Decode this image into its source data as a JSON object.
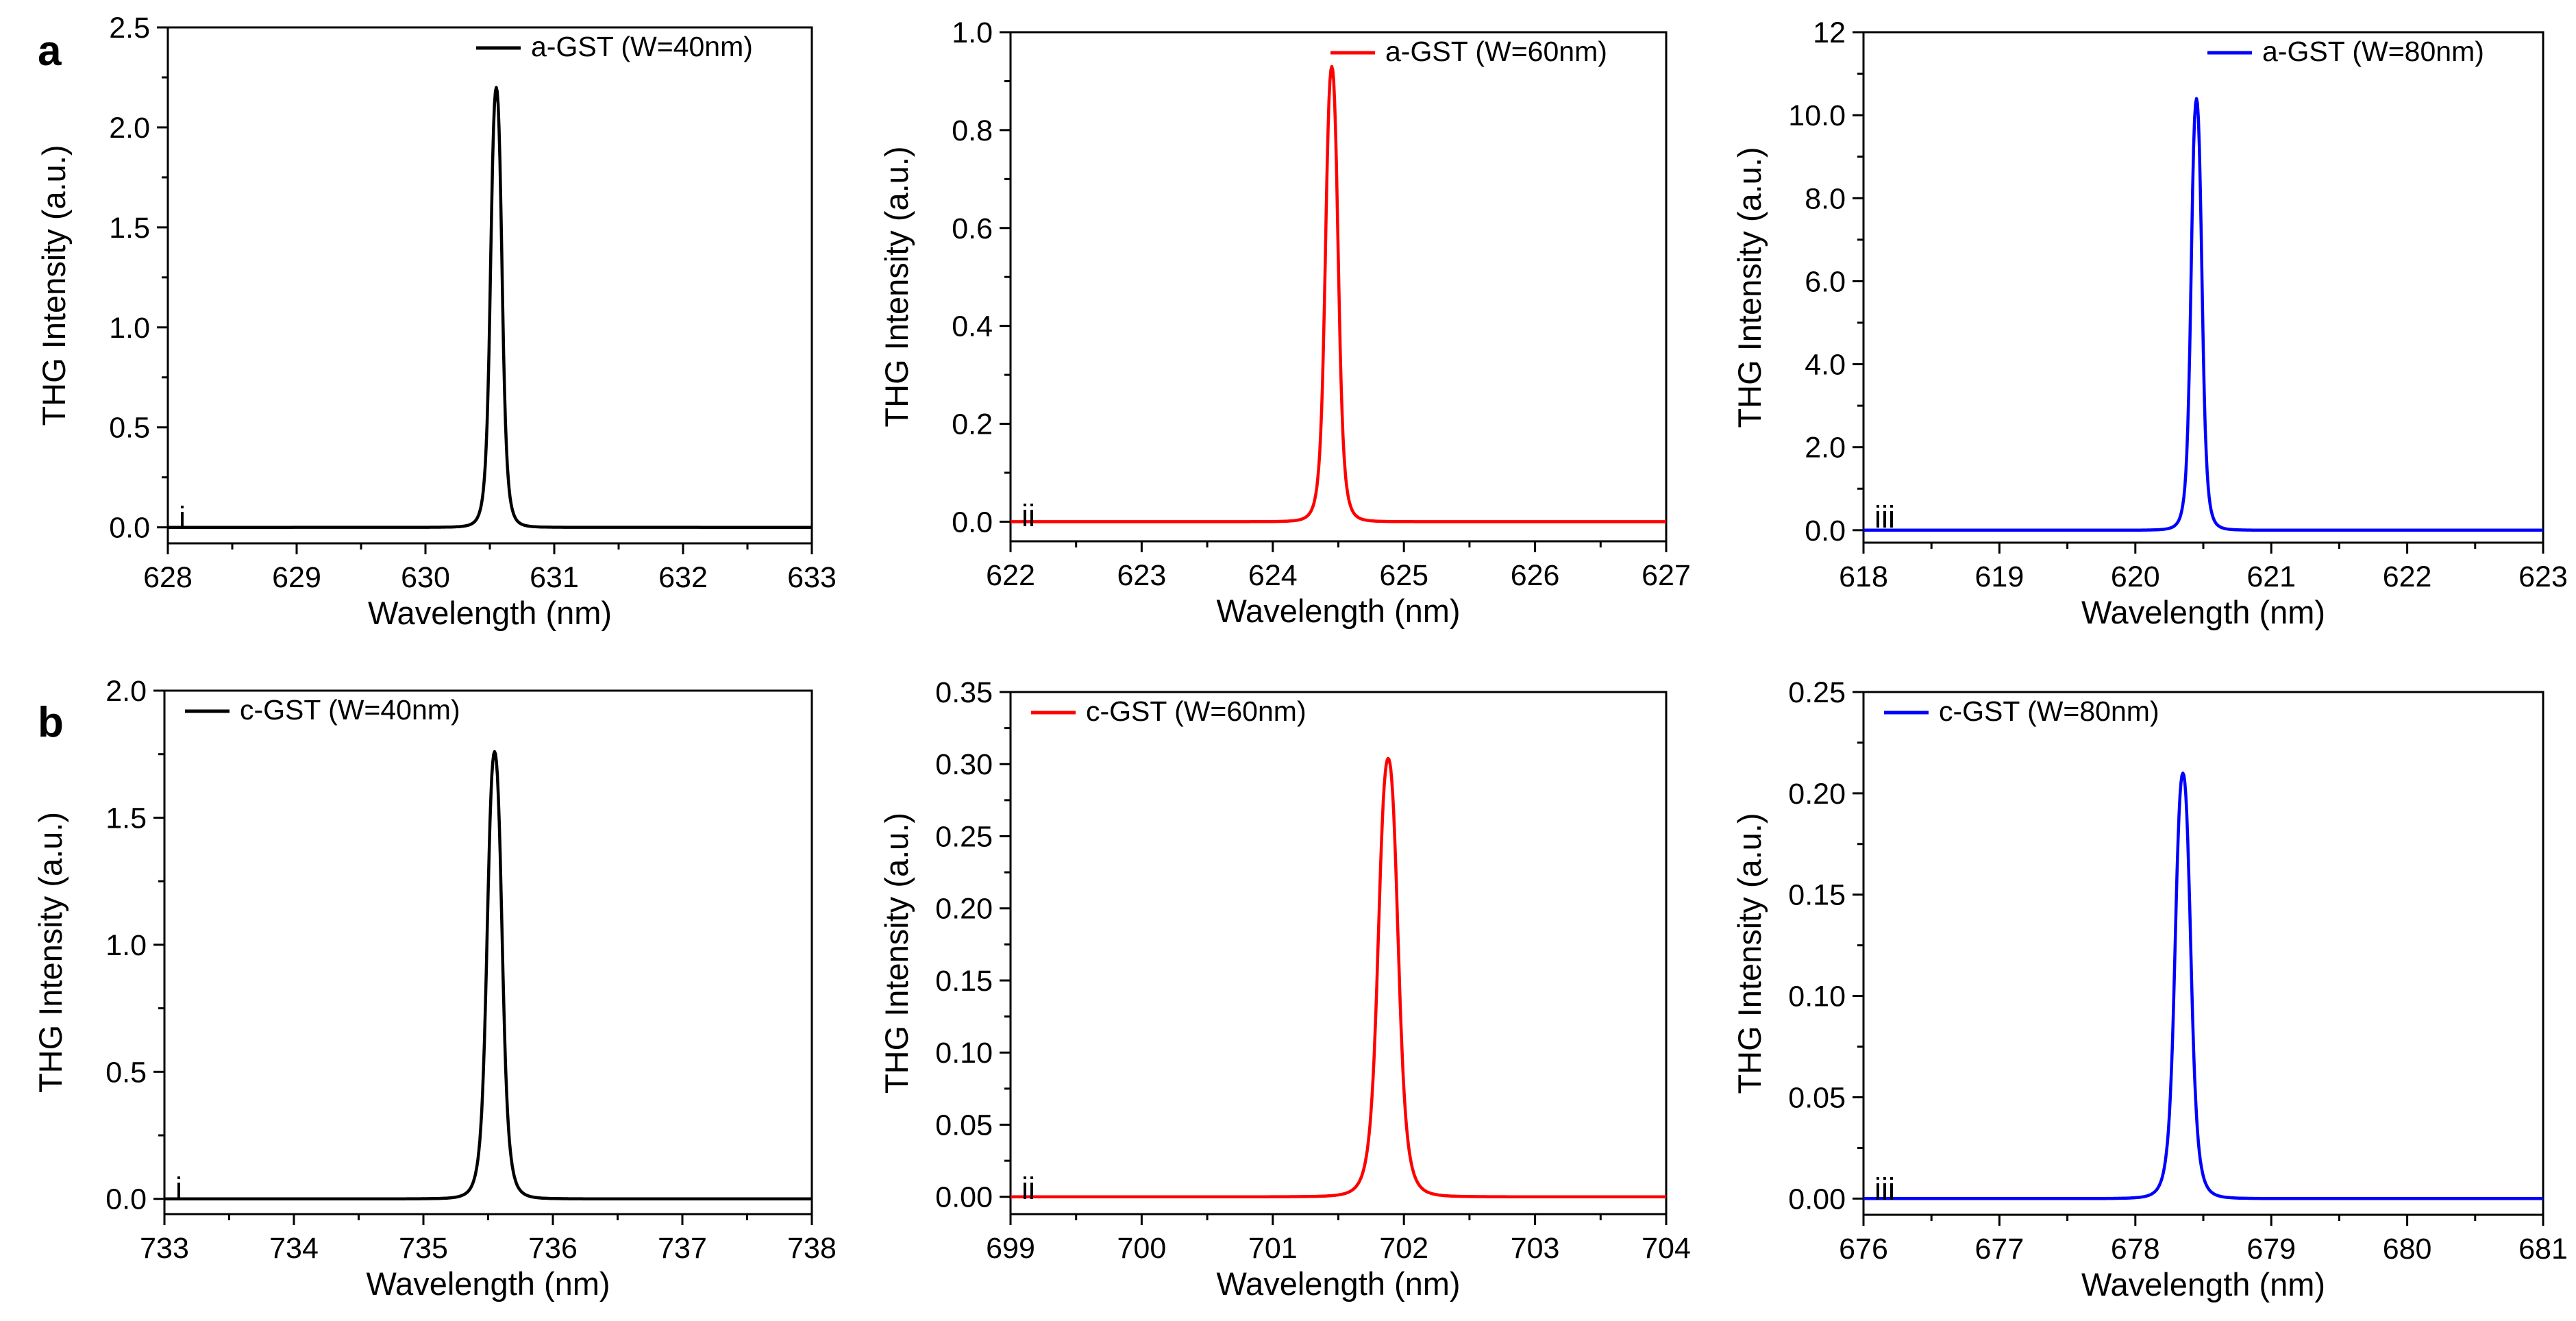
{
  "row_labels": [
    "a",
    "b"
  ],
  "chart_data": [
    {
      "type": "line",
      "row": "a",
      "panel_label": "i",
      "title": "",
      "xlabel": "Wavelength (nm)",
      "ylabel": "THG Intensity (a.u.)",
      "xlim": [
        628,
        633
      ],
      "ylim": [
        -0.08,
        2.5
      ],
      "xticks": [
        628,
        629,
        630,
        631,
        632,
        633
      ],
      "xtick_labels": [
        "628",
        "629",
        "630",
        "631",
        "632",
        "633"
      ],
      "yticks": [
        0.0,
        0.5,
        1.0,
        1.5,
        2.0,
        2.5
      ],
      "ytick_labels": [
        "0.0",
        "0.5",
        "1.0",
        "1.5",
        "2.0",
        "2.5"
      ],
      "legend": "top-right",
      "series": [
        {
          "name": "a-GST (W=40nm)",
          "color": "#000000",
          "peak_x": 630.55,
          "peak_y": 2.2,
          "fwhm": 0.1
        }
      ]
    },
    {
      "type": "line",
      "row": "a",
      "panel_label": "ii",
      "title": "",
      "xlabel": "Wavelength (nm)",
      "ylabel": "THG Intensity (a.u.)",
      "xlim": [
        622,
        627
      ],
      "ylim": [
        -0.04,
        1.0
      ],
      "xticks": [
        622,
        623,
        624,
        625,
        626,
        627
      ],
      "xtick_labels": [
        "622",
        "623",
        "624",
        "625",
        "626",
        "627"
      ],
      "yticks": [
        0.0,
        0.2,
        0.4,
        0.6,
        0.8,
        1.0
      ],
      "ytick_labels": [
        "0.0",
        "0.2",
        "0.4",
        "0.6",
        "0.8",
        "1.0"
      ],
      "legend": "top-right",
      "series": [
        {
          "name": "a-GST (W=60nm)",
          "color": "#ff0000",
          "peak_x": 624.45,
          "peak_y": 0.93,
          "fwhm": 0.11
        }
      ]
    },
    {
      "type": "line",
      "row": "a",
      "panel_label": "iii",
      "title": "",
      "xlabel": "Wavelength (nm)",
      "ylabel": "THG Intensity (a.u.)",
      "xlim": [
        618,
        623
      ],
      "ylim": [
        -0.3,
        12
      ],
      "xticks": [
        618,
        619,
        620,
        621,
        622,
        623
      ],
      "xtick_labels": [
        "618",
        "619",
        "620",
        "621",
        "622",
        "623"
      ],
      "yticks": [
        0,
        2,
        4,
        6,
        8,
        10,
        12
      ],
      "ytick_labels": [
        "0.0",
        "2.0",
        "4.0",
        "6.0",
        "8.0",
        "10.0",
        "12"
      ],
      "legend": "top-right",
      "series": [
        {
          "name": "a-GST (W=80nm)",
          "color": "#0000ff",
          "peak_x": 620.45,
          "peak_y": 10.4,
          "fwhm": 0.09
        }
      ]
    },
    {
      "type": "line",
      "row": "b",
      "panel_label": "i",
      "title": "",
      "xlabel": "Wavelength (nm)",
      "ylabel": "THG Intensity (a.u.)",
      "xlim": [
        733,
        738
      ],
      "ylim": [
        -0.06,
        2.0
      ],
      "xticks": [
        733,
        734,
        735,
        736,
        737,
        738
      ],
      "xtick_labels": [
        "733",
        "734",
        "735",
        "736",
        "737",
        "738"
      ],
      "yticks": [
        0.0,
        0.5,
        1.0,
        1.5,
        2.0
      ],
      "ytick_labels": [
        "0.0",
        "0.5",
        "1.0",
        "1.5",
        "2.0"
      ],
      "legend": "top-left",
      "series": [
        {
          "name": "c-GST (W=40nm)",
          "color": "#000000",
          "peak_x": 735.55,
          "peak_y": 1.76,
          "fwhm": 0.13
        }
      ]
    },
    {
      "type": "line",
      "row": "b",
      "panel_label": "ii",
      "title": "",
      "xlabel": "Wavelength (nm)",
      "ylabel": "THG Intensity (a.u.)",
      "xlim": [
        699,
        704
      ],
      "ylim": [
        -0.012,
        0.35
      ],
      "xticks": [
        699,
        700,
        701,
        702,
        703,
        704
      ],
      "xtick_labels": [
        "699",
        "700",
        "701",
        "702",
        "703",
        "704"
      ],
      "yticks": [
        0.0,
        0.05,
        0.1,
        0.15,
        0.2,
        0.25,
        0.3,
        0.35
      ],
      "ytick_labels": [
        "0.00",
        "0.05",
        "0.10",
        "0.15",
        "0.20",
        "0.25",
        "0.30",
        "0.35"
      ],
      "legend": "top-left",
      "series": [
        {
          "name": "c-GST (W=60nm)",
          "color": "#ff0000",
          "peak_x": 701.88,
          "peak_y": 0.304,
          "fwhm": 0.17
        }
      ]
    },
    {
      "type": "line",
      "row": "b",
      "panel_label": "iii",
      "title": "",
      "xlabel": "Wavelength (nm)",
      "ylabel": "THG Intensity (a.u.)",
      "xlim": [
        676,
        681
      ],
      "ylim": [
        -0.008,
        0.25
      ],
      "xticks": [
        676,
        677,
        678,
        679,
        680,
        681
      ],
      "xtick_labels": [
        "676",
        "677",
        "678",
        "679",
        "680",
        "681"
      ],
      "yticks": [
        0.0,
        0.05,
        0.1,
        0.15,
        0.2,
        0.25
      ],
      "ytick_labels": [
        "0.00",
        "0.05",
        "0.10",
        "0.15",
        "0.20",
        "0.25"
      ],
      "legend": "top-left",
      "series": [
        {
          "name": "c-GST (W=80nm)",
          "color": "#0000ff",
          "peak_x": 678.35,
          "peak_y": 0.21,
          "fwhm": 0.13
        }
      ]
    }
  ]
}
